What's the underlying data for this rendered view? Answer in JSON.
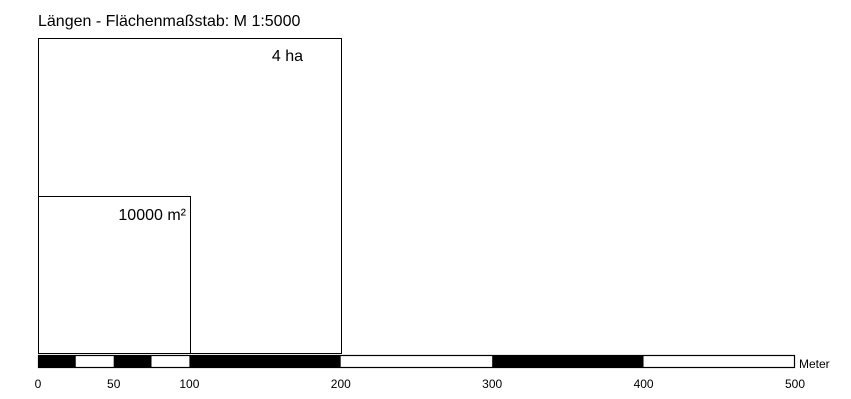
{
  "title": "Längen - Flächenmaßstab: M 1:5000",
  "areas": [
    {
      "label": "4 ha"
    },
    {
      "label": "10000 m²"
    }
  ],
  "scale_bar": {
    "unit": "Meter",
    "max_m": 500,
    "ticks": [
      "0",
      "50",
      "100",
      "200",
      "300",
      "400",
      "500"
    ],
    "tick_values_m": [
      0,
      50,
      100,
      200,
      300,
      400,
      500
    ],
    "segments": [
      {
        "from": 0,
        "to": 25,
        "fill": "black"
      },
      {
        "from": 25,
        "to": 50,
        "fill": "white"
      },
      {
        "from": 50,
        "to": 75,
        "fill": "black"
      },
      {
        "from": 75,
        "to": 100,
        "fill": "white"
      },
      {
        "from": 100,
        "to": 200,
        "fill": "black"
      },
      {
        "from": 200,
        "to": 300,
        "fill": "white"
      },
      {
        "from": 300,
        "to": 400,
        "fill": "black"
      },
      {
        "from": 400,
        "to": 500,
        "fill": "white"
      }
    ]
  },
  "colors": {
    "stroke": "#000000",
    "dark": "#000000",
    "light": "#ffffff"
  }
}
